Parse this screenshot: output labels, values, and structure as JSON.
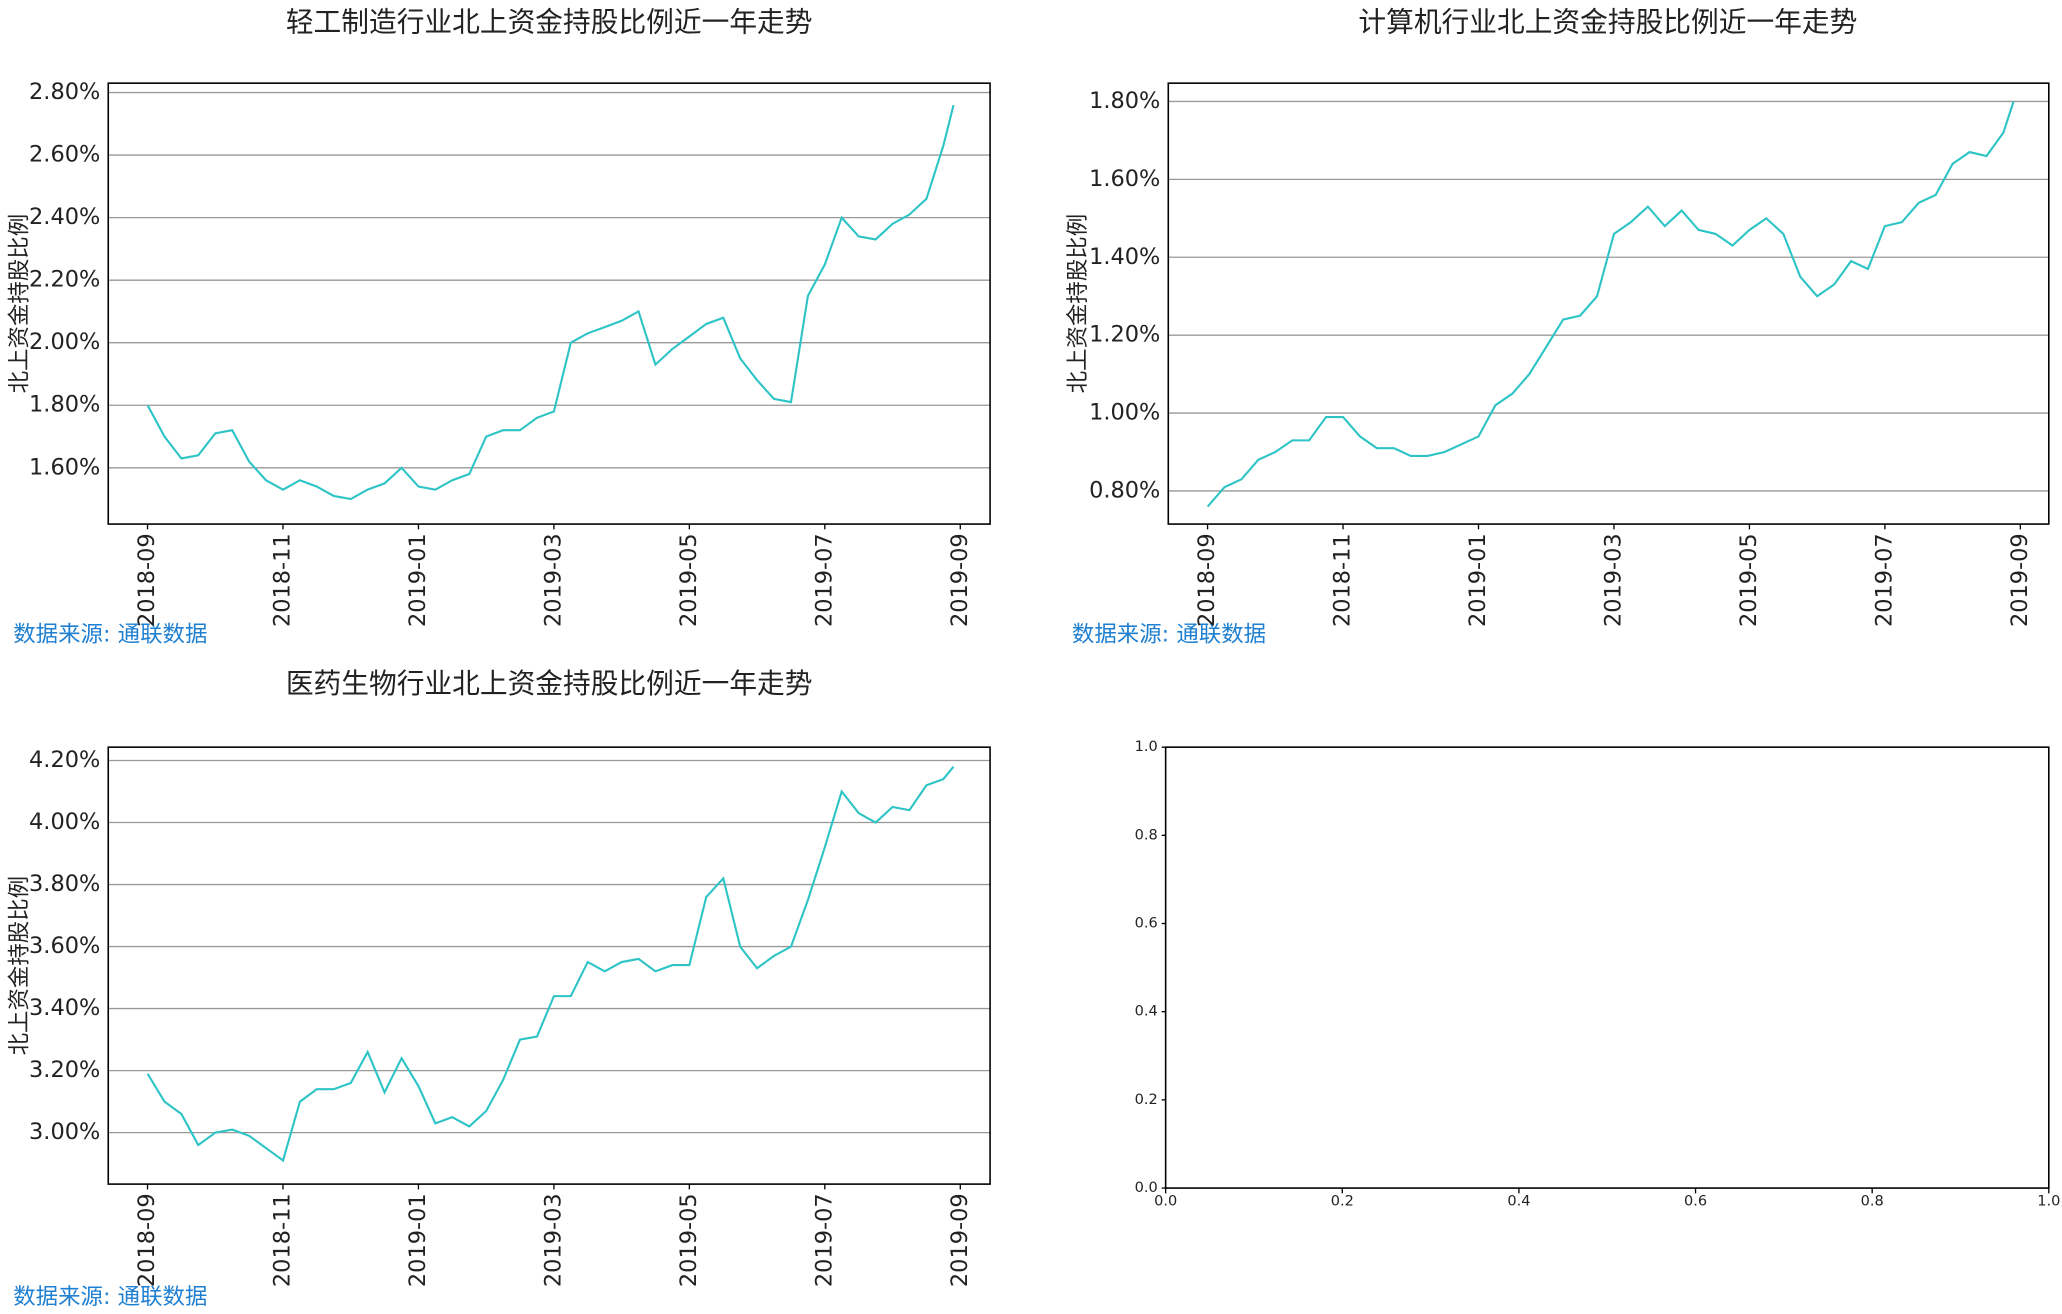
{
  "chart_data": [
    {
      "type": "line",
      "title": "轻工制造行业北上资金持股比例近一年走势",
      "ylabel": "北上资金持股比例",
      "source": "数据来源: 通联数据",
      "color": "#2ec4c6",
      "grid": true,
      "x": [
        0,
        0.25,
        0.5,
        0.75,
        1,
        1.25,
        1.5,
        1.75,
        2,
        2.25,
        2.5,
        2.75,
        3,
        3.25,
        3.5,
        3.75,
        4,
        4.25,
        4.5,
        4.75,
        5,
        5.25,
        5.5,
        5.75,
        6,
        6.25,
        6.5,
        6.75,
        7,
        7.25,
        7.5,
        7.75,
        8,
        8.25,
        8.5,
        8.75,
        9,
        9.25,
        9.5,
        9.75,
        10,
        10.25,
        10.5,
        10.75,
        11,
        11.25,
        11.5,
        11.75,
        11.9
      ],
      "values": [
        1.8,
        1.7,
        1.63,
        1.64,
        1.71,
        1.72,
        1.62,
        1.56,
        1.53,
        1.56,
        1.54,
        1.51,
        1.5,
        1.53,
        1.55,
        1.6,
        1.54,
        1.53,
        1.56,
        1.58,
        1.7,
        1.72,
        1.72,
        1.76,
        1.78,
        2.0,
        2.03,
        2.05,
        2.07,
        2.1,
        1.93,
        1.98,
        2.02,
        2.06,
        2.08,
        1.95,
        1.88,
        1.82,
        1.81,
        2.15,
        2.25,
        2.4,
        2.34,
        2.33,
        2.38,
        2.41,
        2.46,
        2.63,
        2.76
      ],
      "xlim": [
        -0.58,
        12.44
      ],
      "xticks": [
        {
          "value": 0,
          "label": "2018-09"
        },
        {
          "value": 2,
          "label": "2018-11"
        },
        {
          "value": 4,
          "label": "2019-01"
        },
        {
          "value": 6,
          "label": "2019-03"
        },
        {
          "value": 8,
          "label": "2019-05"
        },
        {
          "value": 10,
          "label": "2019-07"
        },
        {
          "value": 12,
          "label": "2019-09"
        }
      ],
      "ylim": [
        1.42,
        2.83
      ],
      "yticks": [
        {
          "value": 1.6,
          "label": "1.60%"
        },
        {
          "value": 1.8,
          "label": "1.80%"
        },
        {
          "value": 2.0,
          "label": "2.00%"
        },
        {
          "value": 2.2,
          "label": "2.20%"
        },
        {
          "value": 2.4,
          "label": "2.40%"
        },
        {
          "value": 2.6,
          "label": "2.60%"
        },
        {
          "value": 2.8,
          "label": "2.80%"
        }
      ]
    },
    {
      "type": "line",
      "title": "计算机行业北上资金持股比例近一年走势",
      "ylabel": "北上资金持股比例",
      "source": "数据来源: 通联数据",
      "color": "#2ec4c6",
      "grid": true,
      "x": [
        0,
        0.25,
        0.5,
        0.75,
        1,
        1.25,
        1.5,
        1.75,
        2,
        2.25,
        2.5,
        2.75,
        3,
        3.25,
        3.5,
        3.75,
        4,
        4.25,
        4.5,
        4.75,
        5,
        5.25,
        5.5,
        5.75,
        6,
        6.25,
        6.5,
        6.75,
        7,
        7.25,
        7.5,
        7.75,
        8,
        8.25,
        8.5,
        8.75,
        9,
        9.25,
        9.5,
        9.75,
        10,
        10.25,
        10.5,
        10.75,
        11,
        11.25,
        11.5,
        11.75,
        11.9
      ],
      "values": [
        0.76,
        0.81,
        0.83,
        0.88,
        0.9,
        0.93,
        0.93,
        0.99,
        0.99,
        0.94,
        0.91,
        0.91,
        0.89,
        0.89,
        0.9,
        0.92,
        0.94,
        1.02,
        1.05,
        1.1,
        1.17,
        1.24,
        1.25,
        1.3,
        1.46,
        1.49,
        1.53,
        1.48,
        1.52,
        1.47,
        1.46,
        1.43,
        1.47,
        1.5,
        1.46,
        1.35,
        1.3,
        1.33,
        1.39,
        1.37,
        1.48,
        1.49,
        1.54,
        1.56,
        1.64,
        1.67,
        1.66,
        1.72,
        1.8
      ],
      "xlim": [
        -0.58,
        12.42
      ],
      "xticks": [
        {
          "value": 0,
          "label": "2018-09"
        },
        {
          "value": 2,
          "label": "2018-11"
        },
        {
          "value": 4,
          "label": "2019-01"
        },
        {
          "value": 6,
          "label": "2019-03"
        },
        {
          "value": 8,
          "label": "2019-05"
        },
        {
          "value": 10,
          "label": "2019-07"
        },
        {
          "value": 12,
          "label": "2019-09"
        }
      ],
      "ylim": [
        0.715,
        1.847
      ],
      "yticks": [
        {
          "value": 0.8,
          "label": "0.80%"
        },
        {
          "value": 1.0,
          "label": "1.00%"
        },
        {
          "value": 1.2,
          "label": "1.20%"
        },
        {
          "value": 1.4,
          "label": "1.40%"
        },
        {
          "value": 1.6,
          "label": "1.60%"
        },
        {
          "value": 1.8,
          "label": "1.80%"
        }
      ]
    },
    {
      "type": "line",
      "title": "医药生物行业北上资金持股比例近一年走势",
      "ylabel": "北上资金持股比例",
      "source": "数据来源: 通联数据",
      "color": "#2ec4c6",
      "grid": true,
      "x": [
        0,
        0.25,
        0.5,
        0.75,
        1,
        1.25,
        1.5,
        1.75,
        2,
        2.25,
        2.5,
        2.75,
        3,
        3.25,
        3.5,
        3.75,
        4,
        4.25,
        4.5,
        4.75,
        5,
        5.25,
        5.5,
        5.75,
        6,
        6.25,
        6.5,
        6.75,
        7,
        7.25,
        7.5,
        7.75,
        8,
        8.25,
        8.5,
        8.75,
        9,
        9.25,
        9.5,
        9.75,
        10,
        10.25,
        10.5,
        10.75,
        11,
        11.25,
        11.5,
        11.75,
        11.9
      ],
      "values": [
        3.19,
        3.1,
        3.06,
        2.96,
        3.0,
        3.01,
        2.99,
        2.95,
        2.91,
        3.1,
        3.14,
        3.14,
        3.16,
        3.26,
        3.13,
        3.24,
        3.15,
        3.03,
        3.05,
        3.02,
        3.07,
        3.17,
        3.3,
        3.31,
        3.44,
        3.44,
        3.55,
        3.52,
        3.55,
        3.56,
        3.52,
        3.54,
        3.54,
        3.76,
        3.82,
        3.6,
        3.53,
        3.57,
        3.6,
        3.75,
        3.92,
        4.1,
        4.03,
        4.0,
        4.05,
        4.04,
        4.12,
        4.14,
        4.18
      ],
      "xlim": [
        -0.58,
        12.44
      ],
      "xticks": [
        {
          "value": 0,
          "label": "2018-09"
        },
        {
          "value": 2,
          "label": "2018-11"
        },
        {
          "value": 4,
          "label": "2019-01"
        },
        {
          "value": 6,
          "label": "2019-03"
        },
        {
          "value": 8,
          "label": "2019-05"
        },
        {
          "value": 10,
          "label": "2019-07"
        },
        {
          "value": 12,
          "label": "2019-09"
        }
      ],
      "ylim": [
        2.834,
        4.243
      ],
      "yticks": [
        {
          "value": 3.0,
          "label": "3.00%"
        },
        {
          "value": 3.2,
          "label": "3.20%"
        },
        {
          "value": 3.4,
          "label": "3.40%"
        },
        {
          "value": 3.6,
          "label": "3.60%"
        },
        {
          "value": 3.8,
          "label": "3.80%"
        },
        {
          "value": 4.0,
          "label": "4.00%"
        },
        {
          "value": 4.2,
          "label": "4.20%"
        }
      ]
    },
    {
      "type": "empty",
      "grid": false,
      "xlim": [
        0,
        1
      ],
      "xticks": [
        {
          "value": 0,
          "label": "0.0"
        },
        {
          "value": 0.2,
          "label": "0.2"
        },
        {
          "value": 0.4,
          "label": "0.4"
        },
        {
          "value": 0.6,
          "label": "0.6"
        },
        {
          "value": 0.8,
          "label": "0.8"
        },
        {
          "value": 1,
          "label": "1.0"
        }
      ],
      "ylim": [
        0,
        1
      ],
      "yticks": [
        {
          "value": 0,
          "label": "0.0"
        },
        {
          "value": 0.2,
          "label": "0.2"
        },
        {
          "value": 0.4,
          "label": "0.4"
        },
        {
          "value": 0.6,
          "label": "0.6"
        },
        {
          "value": 0.8,
          "label": "0.8"
        },
        {
          "value": 1,
          "label": "1.0"
        }
      ]
    }
  ]
}
